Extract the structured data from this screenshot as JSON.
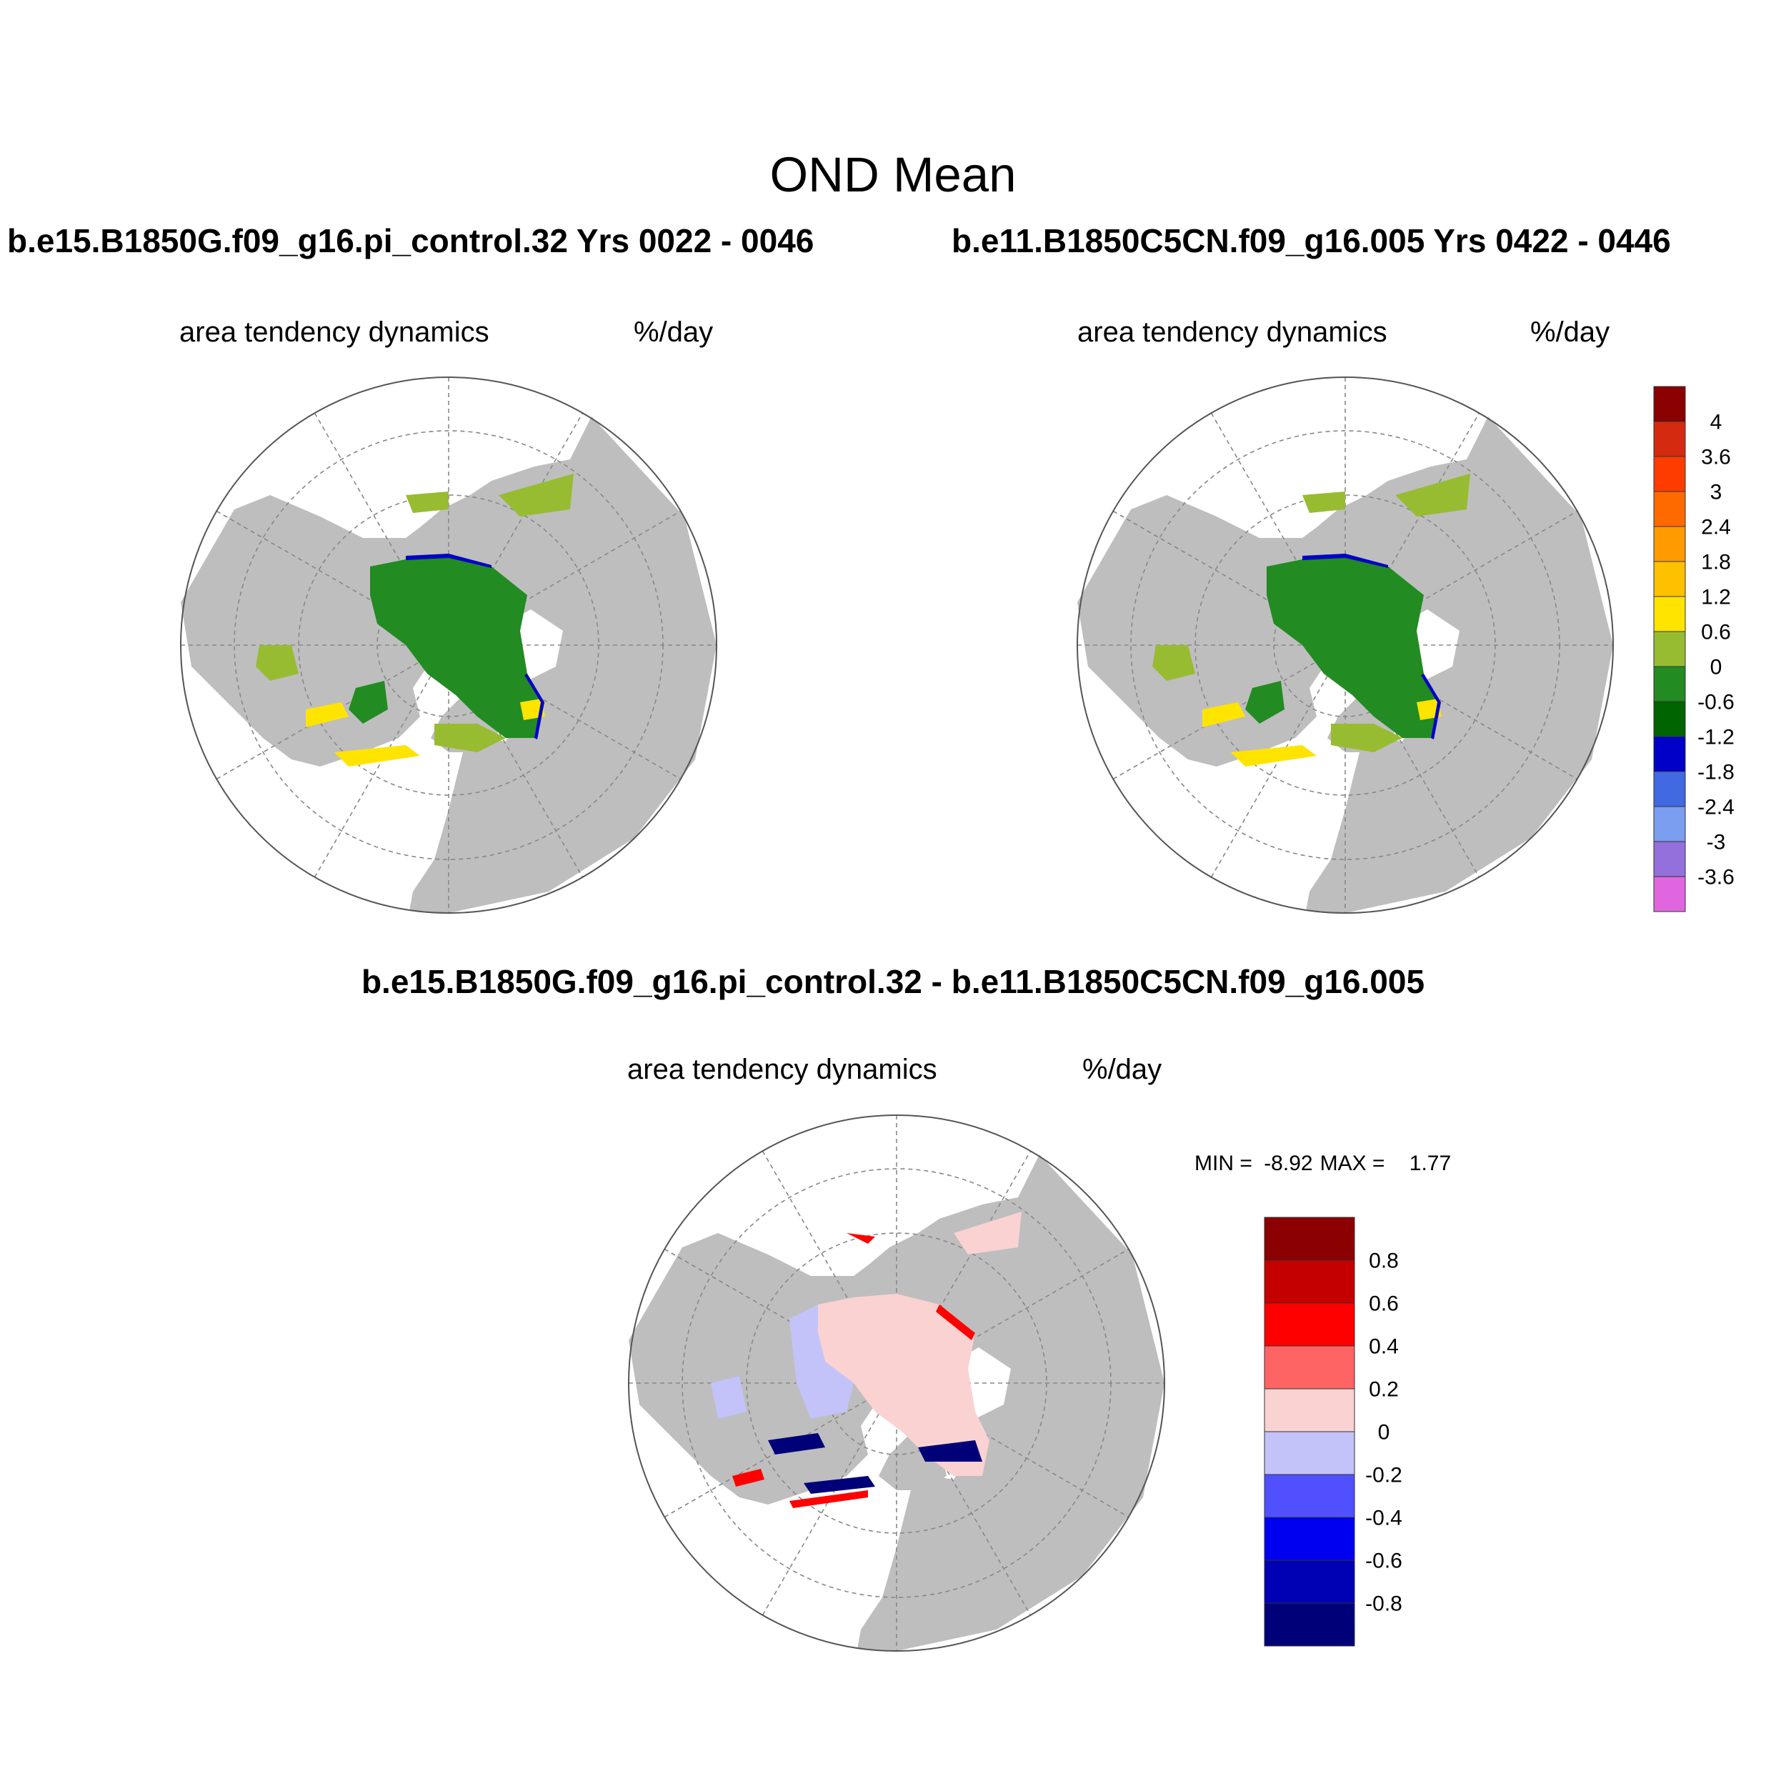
{
  "main_title": "OND Mean",
  "panel_left": {
    "case_title": "b.e15.B1850G.f09_g16.pi_control.32  Yrs 0022 - 0046",
    "variable": "area tendency dynamics",
    "units": "%/day"
  },
  "panel_right": {
    "case_title": "b.e11.B1850C5CN.f09_g16.005  Yrs 0422 - 0446",
    "variable": "area tendency dynamics",
    "units": "%/day"
  },
  "panel_diff": {
    "case_title": "b.e15.B1850G.f09_g16.pi_control.32 - b.e11.B1850C5CN.f09_g16.005",
    "variable": "area tendency dynamics",
    "units": "%/day",
    "min_label": "MIN = ",
    "min_value": "-8.92",
    "max_label": "MAX = ",
    "max_value": "1.77"
  },
  "colorbar_top": {
    "labels": [
      "4",
      "3.6",
      "3",
      "2.4",
      "1.8",
      "1.2",
      "0.6",
      "0",
      "-0.6",
      "-1.2",
      "-1.8",
      "-2.4",
      "-3",
      "-3.6"
    ],
    "colors": [
      "#8B0000",
      "#D42A10",
      "#FF3C00",
      "#FF6A00",
      "#FF9A00",
      "#FFC000",
      "#FFE400",
      "#97BC32",
      "#228B22",
      "#006400",
      "#0000C8",
      "#4169E1",
      "#7B9EF0",
      "#9370DB",
      "#E066E0"
    ]
  },
  "colorbar_diff": {
    "labels": [
      "0.8",
      "0.6",
      "0.4",
      "0.2",
      "0",
      "-0.2",
      "-0.4",
      "-0.6",
      "-0.8"
    ],
    "colors": [
      "#8B0000",
      "#C40000",
      "#FF0000",
      "#FF6464",
      "#FAD2D2",
      "#C3C3FA",
      "#5050FF",
      "#0000F0",
      "#0000B4",
      "#000078"
    ]
  },
  "map_colors": {
    "ocean": "#ffffff",
    "land": "#bebebe",
    "ice_interior": "#228B22",
    "ice_edge_light": "#97BC32",
    "ice_edge_yellow": "#FFE400",
    "ice_margin_blue": "#0000C8",
    "diff_interior": "#FAD2D2",
    "diff_light_blue": "#C3C3FA",
    "diff_dark_blue": "#000078",
    "diff_red": "#FF0000"
  }
}
